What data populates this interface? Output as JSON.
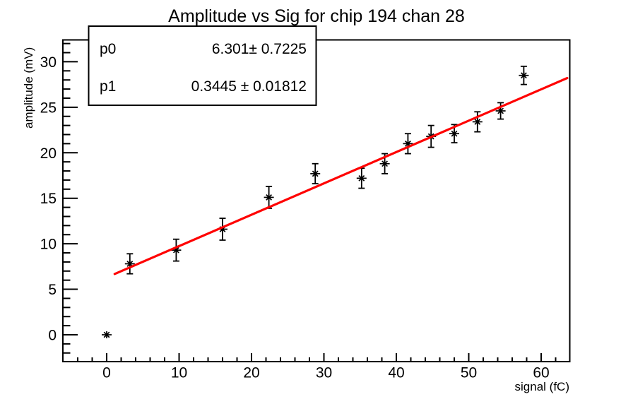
{
  "chart_data": {
    "type": "scatter",
    "title": "Amplitude vs Sig for chip 194 chan 28",
    "x_axis": {
      "label": "signal (fC)",
      "range": [
        -6.05,
        63.95
      ],
      "major_ticks": [
        0,
        10,
        20,
        30,
        40,
        50,
        60
      ],
      "tick_labels": [
        "0",
        "10",
        "20",
        "30",
        "40",
        "50",
        "60"
      ],
      "minor_step": 2
    },
    "y_axis": {
      "label": "amplitude (mV)",
      "range": [
        -2.95,
        32.4
      ],
      "major_ticks": [
        0,
        5,
        10,
        15,
        20,
        25,
        30
      ],
      "tick_labels": [
        "0",
        "5",
        "10",
        "15",
        "20",
        "25",
        "30"
      ],
      "minor_step": 1
    },
    "grid": false,
    "marker": {
      "style": "asterisk",
      "color": "#000000"
    },
    "points": [
      {
        "x": 0.0,
        "y": 0.0,
        "ey": 0.2
      },
      {
        "x": 3.2,
        "y": 7.8,
        "ey": 1.1
      },
      {
        "x": 9.6,
        "y": 9.3,
        "ey": 1.2
      },
      {
        "x": 16.0,
        "y": 11.6,
        "ey": 1.2
      },
      {
        "x": 22.4,
        "y": 15.1,
        "ey": 1.2
      },
      {
        "x": 28.8,
        "y": 17.7,
        "ey": 1.1
      },
      {
        "x": 35.2,
        "y": 17.2,
        "ey": 1.1
      },
      {
        "x": 38.4,
        "y": 18.8,
        "ey": 1.1
      },
      {
        "x": 41.6,
        "y": 21.0,
        "ey": 1.1
      },
      {
        "x": 44.8,
        "y": 21.8,
        "ey": 1.2
      },
      {
        "x": 48.0,
        "y": 22.1,
        "ey": 1.0
      },
      {
        "x": 51.2,
        "y": 23.4,
        "ey": 1.1
      },
      {
        "x": 54.4,
        "y": 24.6,
        "ey": 0.9
      },
      {
        "x": 57.6,
        "y": 28.5,
        "ey": 1.0
      }
    ],
    "fit": {
      "type": "linear",
      "p0": 6.301,
      "p0_err": 0.7225,
      "p1": 0.3445,
      "p1_err": 0.01812,
      "draw_range": [
        1.1,
        63.6
      ],
      "color": "#ff0000"
    },
    "stats_box": {
      "rows": [
        {
          "name": "p0",
          "value": "6.301± 0.7225"
        },
        {
          "name": "p1",
          "value": "0.3445 ± 0.01812"
        }
      ]
    },
    "colors": {
      "background": "#ffffff",
      "axis": "#000000",
      "marker": "#000000",
      "fit_line": "#ff0000"
    }
  }
}
